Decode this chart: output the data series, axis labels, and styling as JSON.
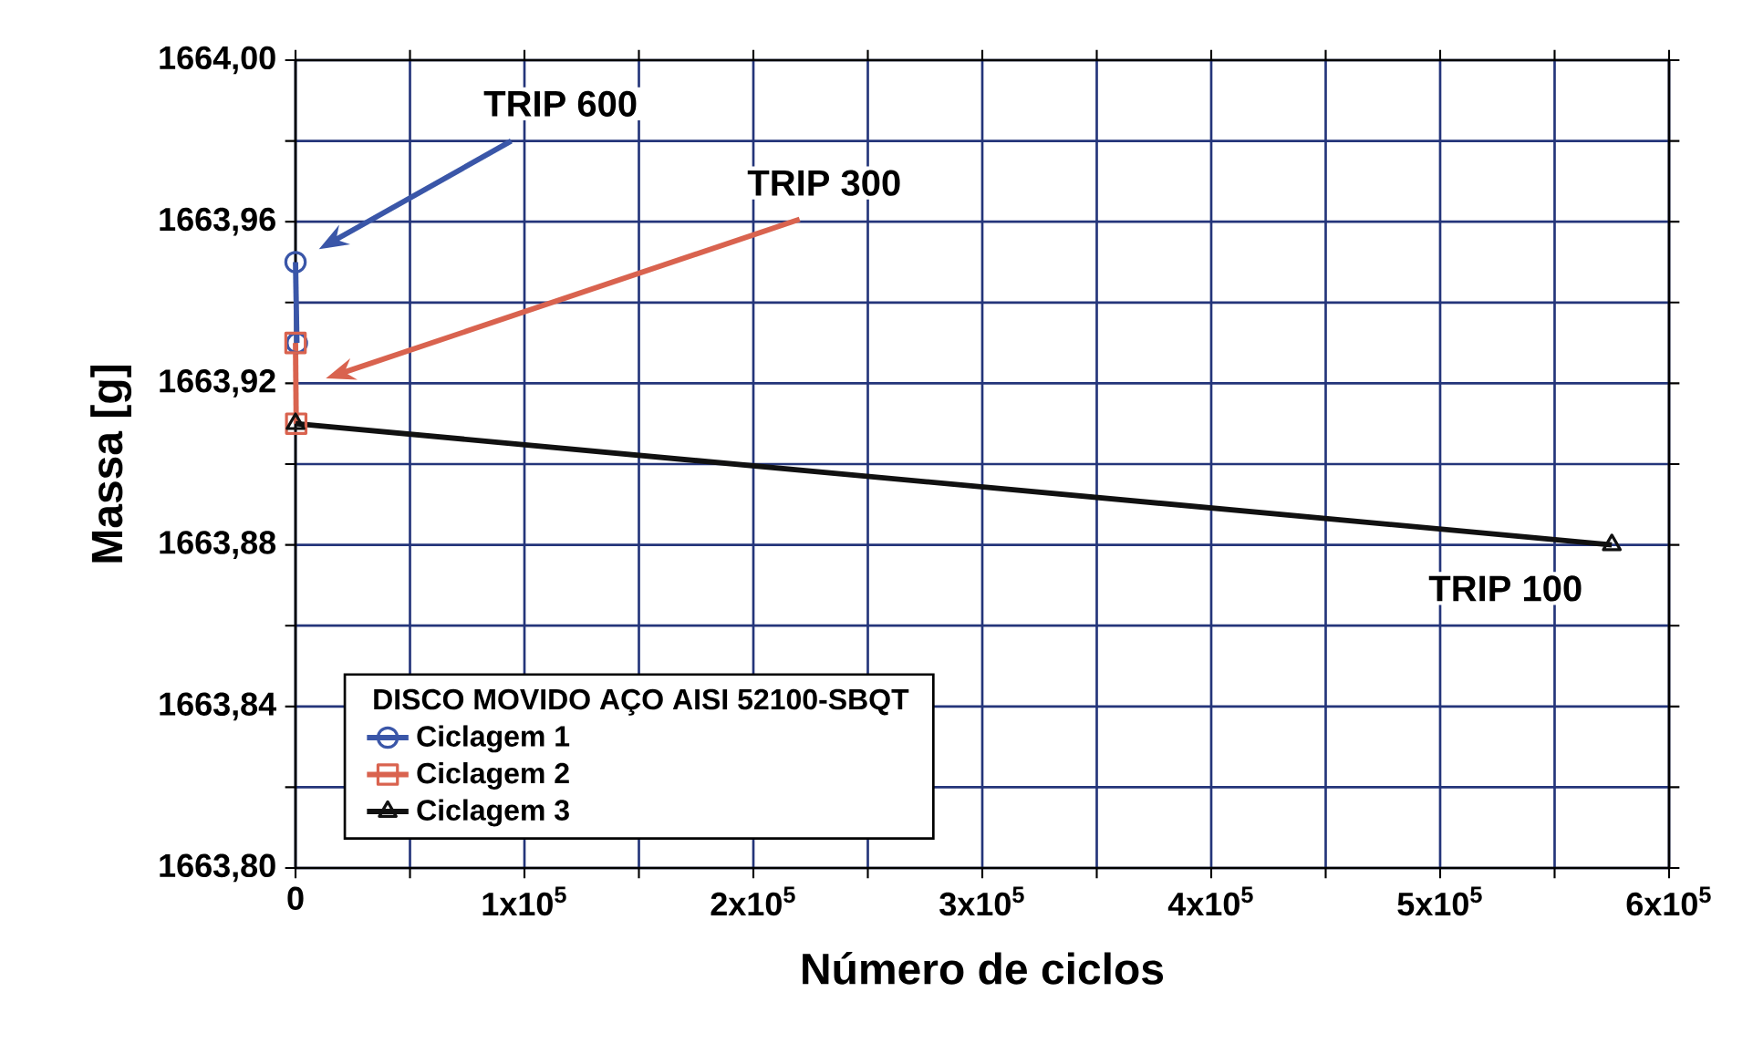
{
  "chart_data": {
    "type": "line",
    "xlabel": "Número de ciclos",
    "ylabel": "Massa [g]",
    "legend_title": "DISCO MOVIDO AÇO AISI 52100-SBQT",
    "series": [
      {
        "name": "Ciclagem 1",
        "color": "#3a56a8",
        "marker": "circle",
        "x": [
          0,
          600
        ],
        "values": [
          1663.95,
          1663.93
        ]
      },
      {
        "name": "Ciclagem 2",
        "color": "#d9634f",
        "marker": "square",
        "x": [
          0,
          300
        ],
        "values": [
          1663.93,
          1663.91
        ]
      },
      {
        "name": "Ciclagem 3",
        "color": "#111111",
        "marker": "triangle",
        "x": [
          0,
          575000
        ],
        "values": [
          1663.91,
          1663.88
        ]
      }
    ],
    "xlim": [
      0,
      600000
    ],
    "xticks": [
      {
        "value": 0,
        "label": "0"
      },
      {
        "value": 50000,
        "label": null
      },
      {
        "value": 100000,
        "label": "1x10$^{5}$"
      },
      {
        "value": 150000,
        "label": null
      },
      {
        "value": 200000,
        "label": "2x10$^{5}$"
      },
      {
        "value": 250000,
        "label": null
      },
      {
        "value": 300000,
        "label": "3x10$^{5}$"
      },
      {
        "value": 350000,
        "label": null
      },
      {
        "value": 400000,
        "label": "4x10$^{5}$"
      },
      {
        "value": 450000,
        "label": null
      },
      {
        "value": 500000,
        "label": "5x10$^{5}$"
      },
      {
        "value": 550000,
        "label": null
      },
      {
        "value": 600000,
        "label": "6x10$^{5}$"
      }
    ],
    "ylim": [
      1663.8,
      1664.0
    ],
    "yticks": [
      {
        "value": 1663.8,
        "label": "1663,80"
      },
      {
        "value": 1663.82,
        "label": null
      },
      {
        "value": 1663.84,
        "label": "1663,84"
      },
      {
        "value": 1663.86,
        "label": null
      },
      {
        "value": 1663.88,
        "label": "1663,88"
      },
      {
        "value": 1663.9,
        "label": null
      },
      {
        "value": 1663.92,
        "label": "1663,92"
      },
      {
        "value": 1663.94,
        "label": null
      },
      {
        "value": 1663.96,
        "label": "1663,96"
      },
      {
        "value": 1663.98,
        "label": null
      },
      {
        "value": 1664.0,
        "label": "1664,00"
      }
    ],
    "grid": true,
    "legend": "bottom left",
    "annotations": [
      "TRIP 600",
      "TRIP 300",
      "TRIP 100"
    ]
  }
}
